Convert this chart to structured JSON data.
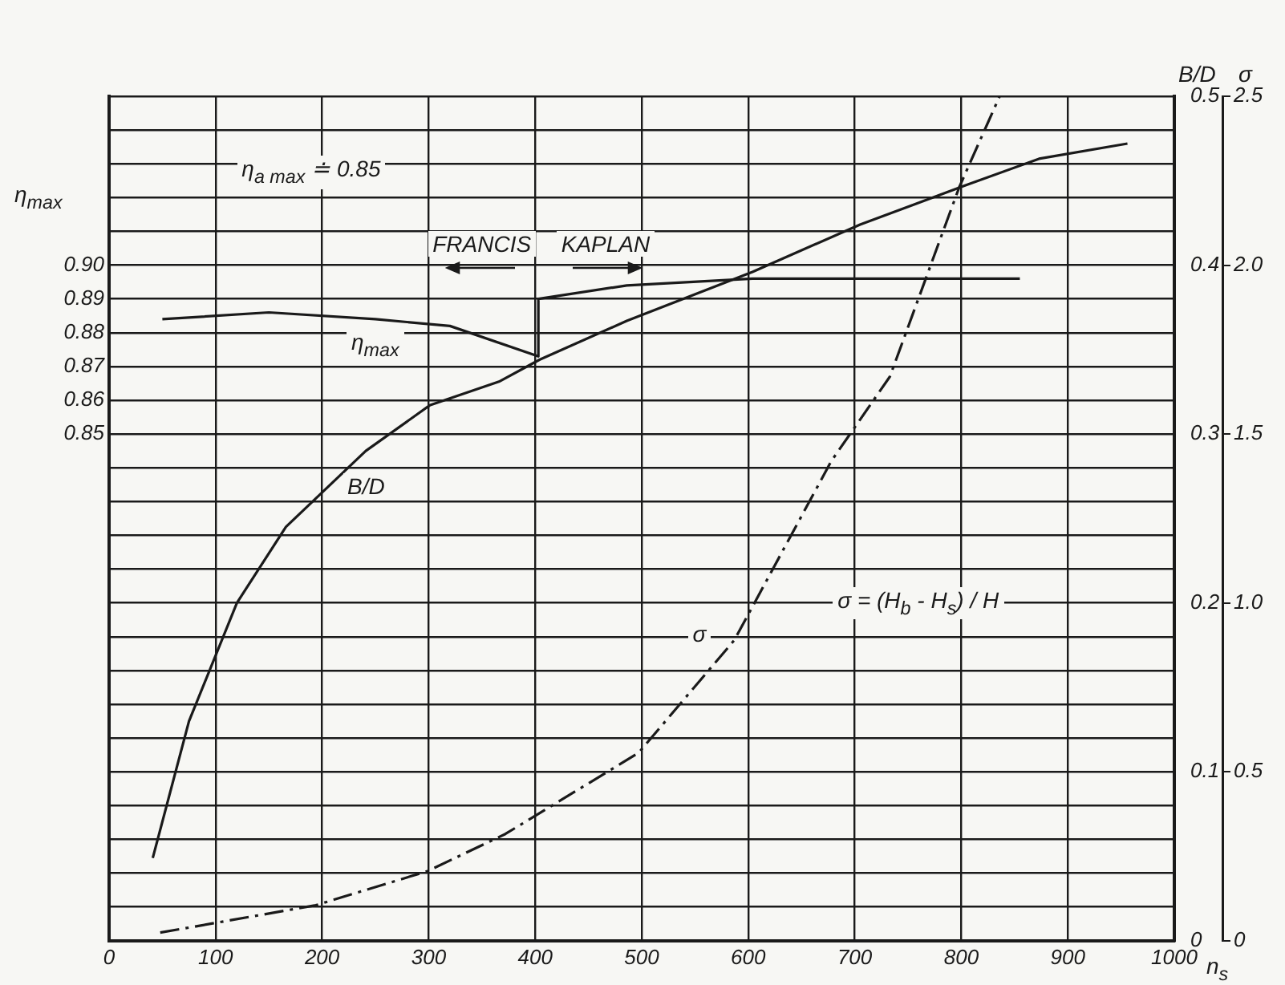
{
  "chart_data": {
    "type": "line",
    "xlabel": "n$_{s}$",
    "ylabel": "η$_{max}$",
    "y2label": "B/D",
    "y3label": "σ",
    "xlim": [
      0,
      1000
    ],
    "xticks": [
      0,
      100,
      200,
      300,
      400,
      500,
      600,
      700,
      800,
      900,
      1000
    ],
    "ylim": [
      0.7,
      0.95
    ],
    "yticks": [
      {
        "value": 0.7,
        "label": null
      },
      {
        "value": 0.71,
        "label": null
      },
      {
        "value": 0.72,
        "label": null
      },
      {
        "value": 0.73,
        "label": null
      },
      {
        "value": 0.74,
        "label": null
      },
      {
        "value": 0.75,
        "label": null
      },
      {
        "value": 0.76,
        "label": null
      },
      {
        "value": 0.77,
        "label": null
      },
      {
        "value": 0.78,
        "label": null
      },
      {
        "value": 0.79,
        "label": null
      },
      {
        "value": 0.8,
        "label": null
      },
      {
        "value": 0.81,
        "label": null
      },
      {
        "value": 0.82,
        "label": null
      },
      {
        "value": 0.83,
        "label": null
      },
      {
        "value": 0.84,
        "label": null
      },
      {
        "value": 0.85,
        "label": "0.85"
      },
      {
        "value": 0.86,
        "label": "0.86"
      },
      {
        "value": 0.87,
        "label": "0.87"
      },
      {
        "value": 0.88,
        "label": "0.88"
      },
      {
        "value": 0.89,
        "label": "0.89"
      },
      {
        "value": 0.9,
        "label": "0.90"
      },
      {
        "value": 0.91,
        "label": null
      },
      {
        "value": 0.92,
        "label": null
      },
      {
        "value": 0.93,
        "label": null
      },
      {
        "value": 0.94,
        "label": null
      },
      {
        "value": 0.95,
        "label": null
      }
    ],
    "y2lim": [
      0,
      0.5
    ],
    "y2ticks": [
      0,
      0.1,
      0.2,
      0.3,
      0.4,
      0.5
    ],
    "y3lim": [
      0,
      2.5
    ],
    "y3ticks": [
      0,
      0.5,
      {
        "value": 1,
        "label": "1.0"
      },
      1.5,
      {
        "value": 2,
        "label": "2.0"
      },
      2.5
    ],
    "grid": true,
    "legend": false,
    "marker": "none",
    "series": [
      {
        "name": "η$_{max}$",
        "color": "#1a1a1a",
        "line_style": "solid",
        "axis": "y",
        "x": [
          50,
          150,
          250,
          320,
          403,
          403,
          486,
          604,
          705,
          855
        ],
        "values": [
          0.884,
          0.886,
          0.884,
          0.882,
          0.873,
          0.89,
          0.894,
          0.896,
          0.896,
          0.896
        ]
      },
      {
        "name": "B/D",
        "color": "#1a1a1a",
        "line_style": "solid",
        "axis": "y2",
        "x": [
          41,
          75,
          120,
          166,
          241,
          301,
          366,
          404,
          486,
          604,
          705,
          803,
          873,
          956
        ],
        "values": [
          0.049,
          0.13,
          0.2,
          0.245,
          0.29,
          0.317,
          0.331,
          0.344,
          0.367,
          0.396,
          0.424,
          0.447,
          0.463,
          0.472
        ]
      },
      {
        "name": "σ",
        "color": "#1a1a1a",
        "line_style": "dashed",
        "axis": "y3",
        "x": [
          48,
          194,
          299,
          372,
          497,
          587,
          678,
          733,
          798,
          836
        ],
        "values": [
          0.024,
          0.105,
          0.206,
          0.316,
          0.556,
          0.89,
          1.42,
          1.67,
          2.23,
          2.5
        ]
      }
    ],
    "annotations": [
      "η$_{a max}$ ≐ 0.85",
      "FRANCIS",
      "KAPLAN",
      "σ = (H$_{b}$ - H$_{s}$) / H"
    ]
  }
}
